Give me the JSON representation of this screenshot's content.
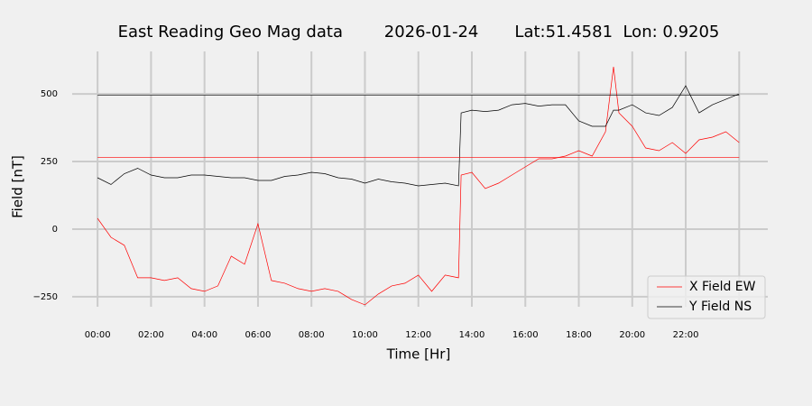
{
  "chart_data": {
    "type": "line",
    "title": "East Reading Geo Mag data        2026-01-24       Lat:51.4581  Lon: 0.9205",
    "x_label": "Time  [Hr]",
    "y_label": "Field  [nT]",
    "x": [
      0,
      0.5,
      1,
      1.5,
      2,
      2.5,
      3,
      3.5,
      4,
      4.5,
      5,
      5.5,
      6,
      6.5,
      7,
      7.5,
      8,
      8.5,
      9,
      9.5,
      10,
      10.5,
      11,
      11.5,
      12,
      12.5,
      13,
      13.5,
      13.6,
      14,
      14.5,
      15,
      15.5,
      16,
      16.5,
      17,
      17.5,
      18,
      18.5,
      19,
      19.3,
      19.5,
      20,
      20.5,
      21,
      21.5,
      22,
      22.5,
      23,
      23.5,
      24
    ],
    "series": [
      {
        "name": "X Field EW",
        "color": "#ff0000",
        "values": [
          40,
          -30,
          -60,
          -180,
          -180,
          -190,
          -180,
          -220,
          -230,
          -210,
          -100,
          -130,
          20,
          -190,
          -200,
          -220,
          -230,
          -220,
          -230,
          -260,
          -280,
          -240,
          -210,
          -200,
          -170,
          -230,
          -170,
          -180,
          200,
          210,
          150,
          170,
          200,
          230,
          260,
          260,
          270,
          290,
          270,
          360,
          600,
          430,
          380,
          300,
          290,
          320,
          280,
          330,
          340,
          360,
          320
        ]
      },
      {
        "name": "Y Field NS",
        "color": "#000000",
        "values": [
          190,
          165,
          205,
          225,
          200,
          190,
          190,
          200,
          200,
          195,
          190,
          190,
          180,
          180,
          195,
          200,
          210,
          205,
          190,
          185,
          170,
          185,
          175,
          170,
          160,
          165,
          170,
          160,
          430,
          440,
          435,
          440,
          460,
          465,
          455,
          460,
          460,
          400,
          380,
          380,
          440,
          440,
          460,
          430,
          420,
          450,
          530,
          430,
          460,
          480,
          500
        ]
      }
    ],
    "reference_lines": [
      {
        "value": 265,
        "color": "#ff0000"
      },
      {
        "value": 495,
        "color": "#000000"
      }
    ],
    "xlim": [
      -0.95,
      25.07
    ],
    "ylim": [
      -287,
      657
    ],
    "xticks": [
      {
        "value": 0,
        "label": "00:00"
      },
      {
        "value": 2,
        "label": "02:00"
      },
      {
        "value": 4,
        "label": "04:00"
      },
      {
        "value": 6,
        "label": "06:00"
      },
      {
        "value": 8,
        "label": "08:00"
      },
      {
        "value": 10,
        "label": "10:00"
      },
      {
        "value": 12,
        "label": "12:00"
      },
      {
        "value": 14,
        "label": "14:00"
      },
      {
        "value": 16,
        "label": "16:00"
      },
      {
        "value": 18,
        "label": "18:00"
      },
      {
        "value": 20,
        "label": "20:00"
      },
      {
        "value": 22,
        "label": "22:00"
      },
      {
        "value": 24,
        "label": null
      }
    ],
    "yticks": [
      {
        "value": -250,
        "label": "−250"
      },
      0,
      250,
      500
    ],
    "grid": true,
    "legend": "lower right"
  }
}
